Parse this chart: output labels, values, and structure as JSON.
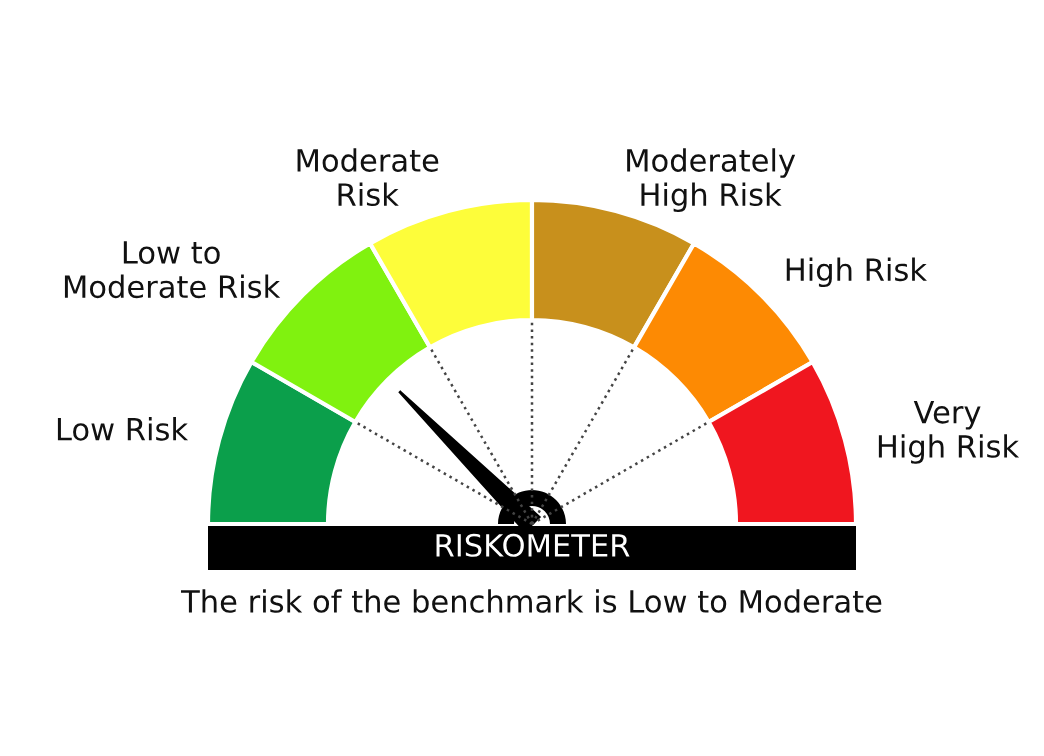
{
  "chart_data": {
    "type": "donut",
    "categories": [
      "Low Risk",
      "Low to\nModerate Risk",
      "Moderate\nRisk",
      "Moderately\nHigh Risk",
      "High Risk",
      "Very\nHigh Risk"
    ],
    "values": [
      16.67,
      16.67,
      16.66,
      16.67,
      16.67,
      16.66
    ],
    "colors": [
      "#0b9f4b",
      "#80f20f",
      "#fdfd3a",
      "#c8901c",
      "#fd8a03",
      "#f0161f"
    ],
    "needle": "Low to\nModerate Risk",
    "annotations": [
      "RISKOMETER",
      "The risk of the benchmark is Low to Moderate"
    ]
  }
}
